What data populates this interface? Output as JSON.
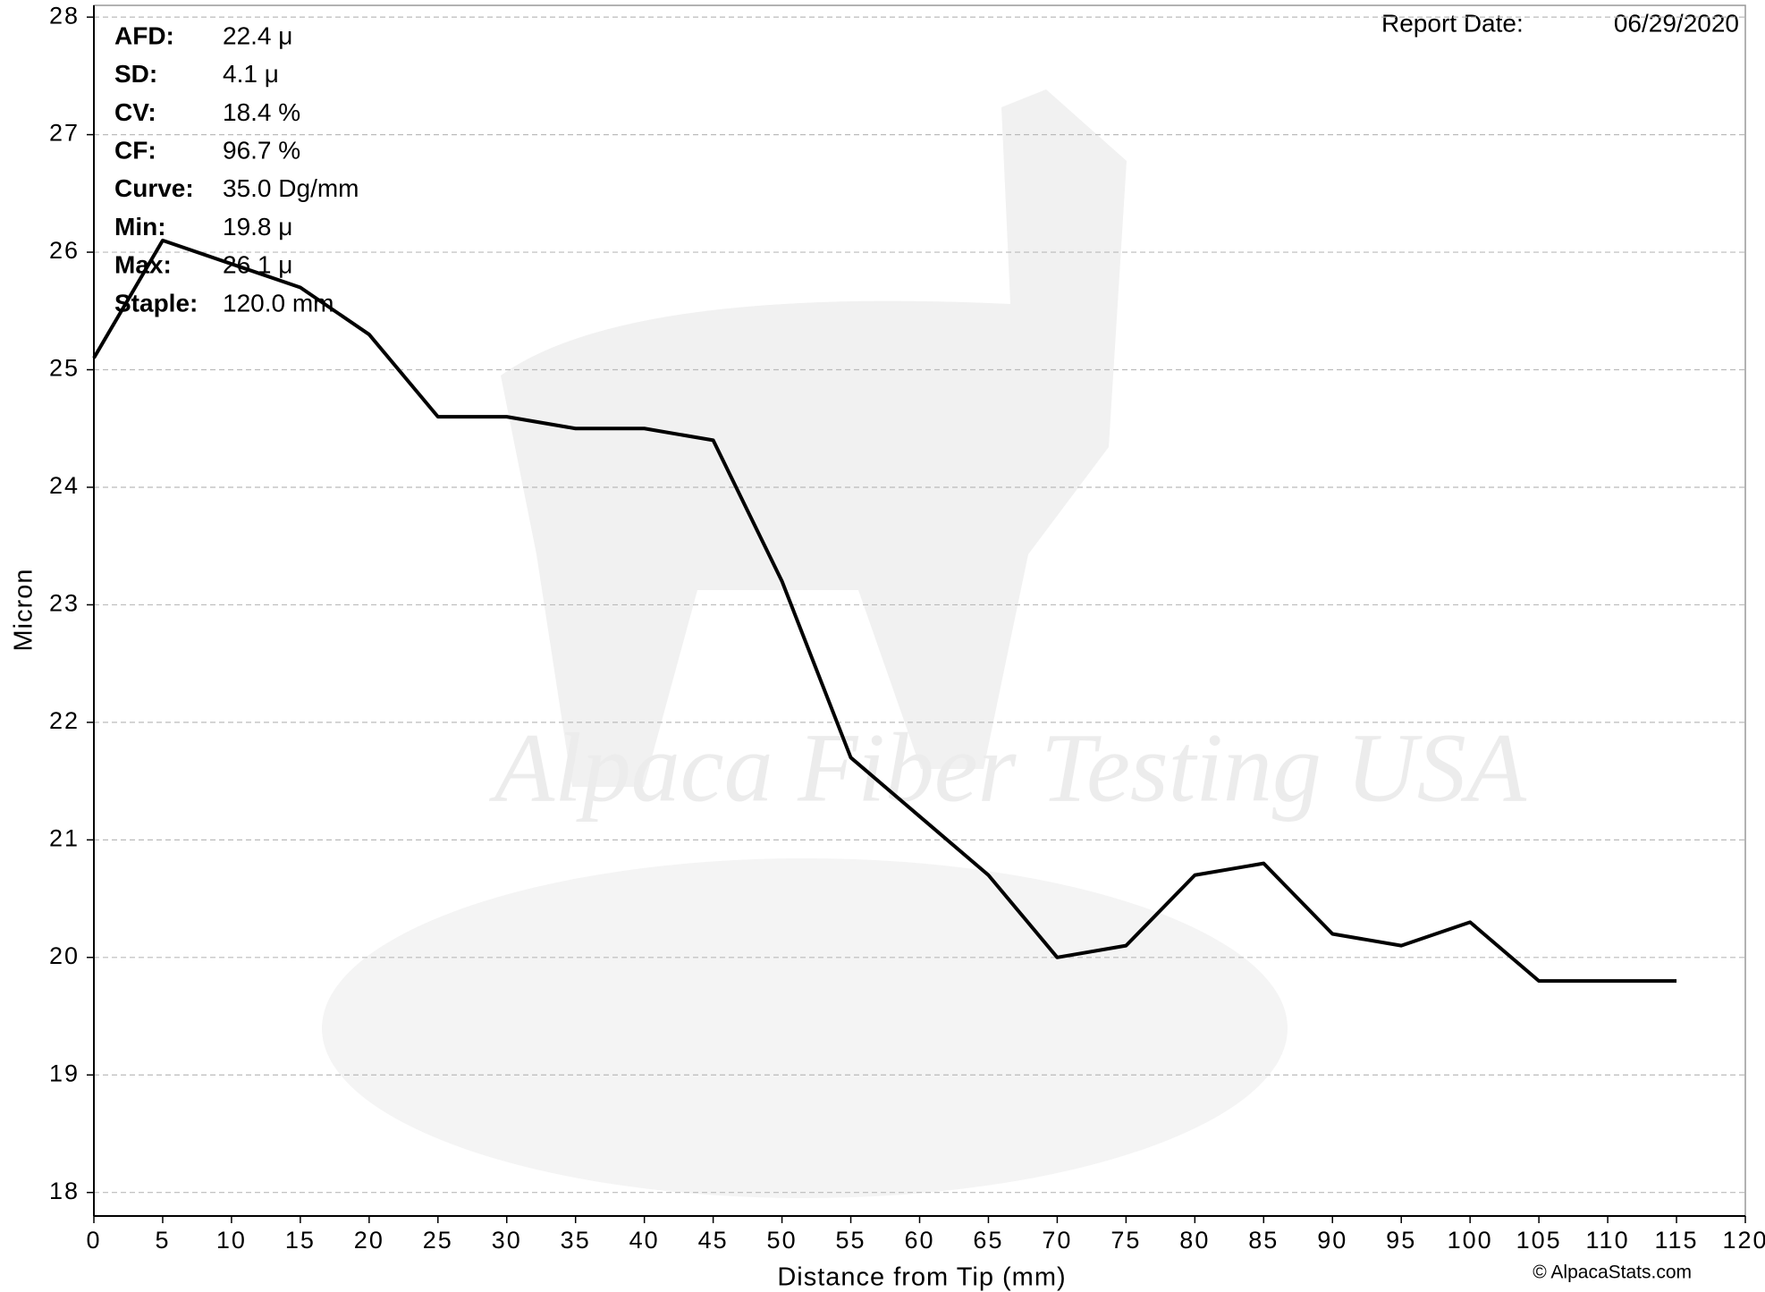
{
  "chart_data": {
    "type": "line",
    "x_label": "Distance from Tip (mm)",
    "y_label": "Micron",
    "x": [
      0,
      5,
      10,
      15,
      20,
      25,
      30,
      35,
      40,
      45,
      50,
      55,
      60,
      65,
      70,
      75,
      80,
      85,
      90,
      95,
      100,
      105,
      110,
      115
    ],
    "series": [
      {
        "color": "#000000",
        "values": [
          25.1,
          26.1,
          25.9,
          25.7,
          25.3,
          24.6,
          24.6,
          24.5,
          24.5,
          24.4,
          23.2,
          21.7,
          21.2,
          20.7,
          20.0,
          20.1,
          20.7,
          20.8,
          20.2,
          20.1,
          20.3,
          19.8,
          19.8,
          19.8
        ]
      }
    ],
    "xlim": [
      0,
      120
    ],
    "ylim": [
      17.8,
      28.1
    ],
    "xticks": [
      0,
      5,
      10,
      15,
      20,
      25,
      30,
      35,
      40,
      45,
      50,
      55,
      60,
      65,
      70,
      75,
      80,
      85,
      90,
      95,
      100,
      105,
      110,
      115,
      120
    ],
    "yticks": [
      18,
      19,
      20,
      21,
      22,
      23,
      24,
      25,
      26,
      27,
      28
    ],
    "grid": true,
    "stats": [
      {
        "label": "AFD:",
        "value": "22.4 μ"
      },
      {
        "label": "SD:",
        "value": "4.1 μ"
      },
      {
        "label": "CV:",
        "value": "18.4 %"
      },
      {
        "label": "CF:",
        "value": "96.7 %"
      },
      {
        "label": "Curve:",
        "value": "35.0 Dg/mm"
      },
      {
        "label": "Min:",
        "value": "19.8 μ"
      },
      {
        "label": "Max:",
        "value": "26.1 μ"
      },
      {
        "label": "Staple:",
        "value": "120.0 mm"
      }
    ],
    "report_date_label": "Report Date:",
    "report_date": "06/29/2020",
    "watermark": "Alpaca Fiber Testing USA",
    "copyright": "© AlpacaStats.com"
  }
}
